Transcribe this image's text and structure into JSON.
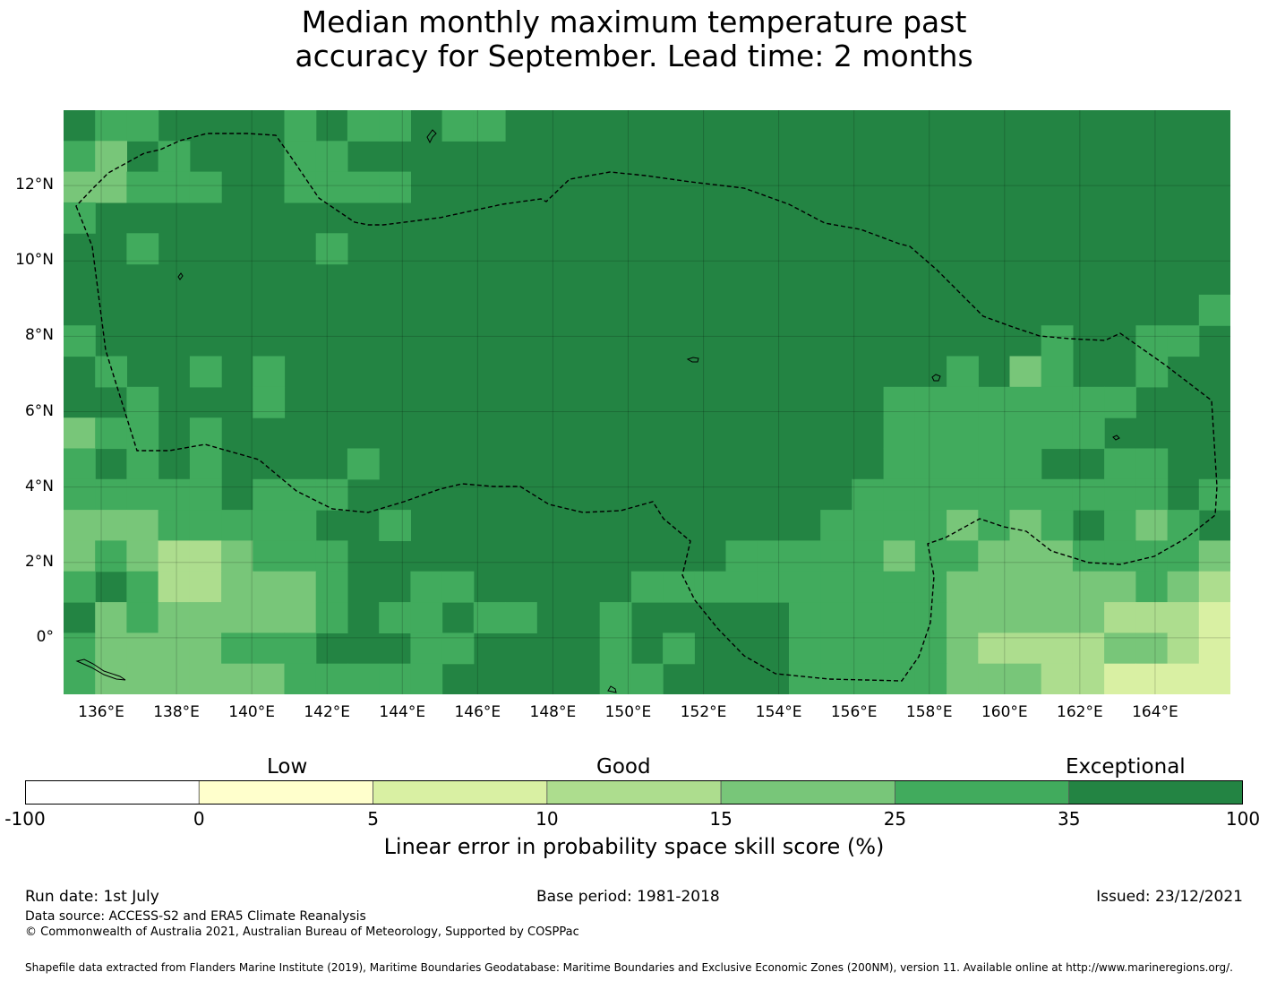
{
  "title_line1": "Median monthly maximum temperature past",
  "title_line2": "accuracy for September. Lead time: 2 months",
  "map": {
    "lon_range": [
      135,
      166
    ],
    "lat_range": [
      -1.5,
      14
    ],
    "cell_size_deg": 0.833,
    "lon_ticks": [
      "136°E",
      "138°E",
      "140°E",
      "142°E",
      "144°E",
      "146°E",
      "148°E",
      "150°E",
      "152°E",
      "154°E",
      "156°E",
      "158°E",
      "160°E",
      "162°E",
      "164°E"
    ],
    "lat_ticks": [
      "12°N",
      "10°N",
      "8°N",
      "6°N",
      "4°N",
      "2°N",
      "0°"
    ],
    "dominant_category": "Exceptional",
    "boundary_style": "dashed black line (EEZ)"
  },
  "colorbar": {
    "group_labels": [
      "Low",
      "Good",
      "Exceptional"
    ],
    "ticks": [
      "-100",
      "0",
      "5",
      "10",
      "15",
      "25",
      "35",
      "100"
    ],
    "colors": [
      "#ffffff",
      "#ffffcc",
      "#d9f0a3",
      "#addd8e",
      "#78c679",
      "#41ab5d",
      "#238443"
    ],
    "label": "Linear error in probability space skill score (%)"
  },
  "footer": {
    "run_date": "Run date: 1st July",
    "base_period": "Base period: 1981-2018",
    "issued": "Issued: 23/12/2021",
    "data_source": "Data source: ACCESS-S2 and ERA5 Climate Reanalysis",
    "copyright": "© Commonwealth of Australia 2021, Australian Bureau of Meteorology, Supported by COSPPac",
    "shapefile": "Shapefile data extracted from Flanders Marine Institute (2019), Maritime Boundaries Geodatabase: Maritime Boundaries and Exclusive Economic Zones (200NM), version 11. Available online at http://www.marineregions.org/."
  }
}
